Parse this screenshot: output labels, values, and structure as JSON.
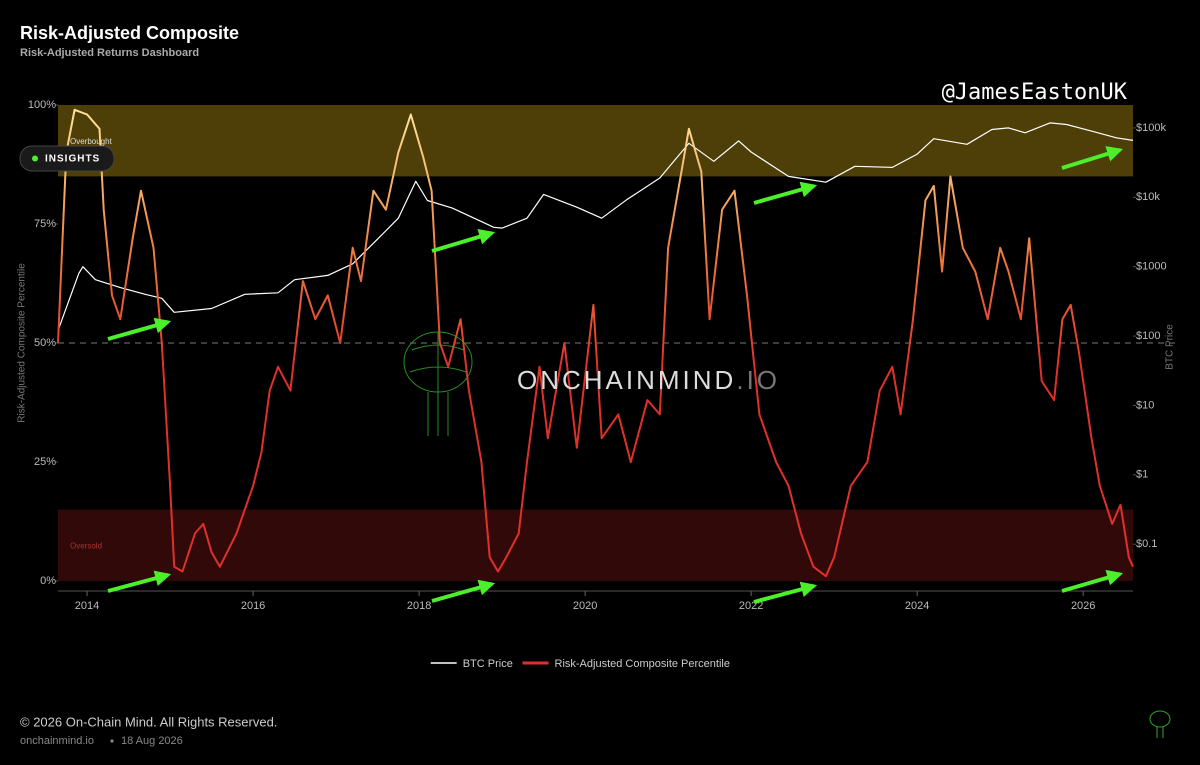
{
  "chart_data": {
    "type": "line",
    "title": "Risk-Adjusted Composite",
    "subtitle": "Risk-Adjusted Returns Dashboard",
    "handle": "@JamesEastonUK",
    "button": "INSIGHTS",
    "watermark": {
      "main": "ONCHAINMIND",
      "suffix": ".IO"
    },
    "ylabel": "Risk-Adjusted Composite Percentile",
    "y2label": "BTC Price",
    "xlim": [
      2013.65,
      2026.6
    ],
    "xticks": [
      2014,
      2016,
      2018,
      2020,
      2022,
      2024,
      2026
    ],
    "ylim": [
      0,
      100
    ],
    "yticks": [
      {
        "value": 0,
        "label": "0%"
      },
      {
        "value": 25,
        "label": "25%"
      },
      {
        "value": 50,
        "label": "50%"
      },
      {
        "value": 75,
        "label": "75%"
      },
      {
        "value": 100,
        "label": "100%"
      }
    ],
    "y2scale": "log",
    "y2lim": [
      0.0295,
      214000
    ],
    "y2ticks": [
      {
        "value": 0.1,
        "label": "$0.1"
      },
      {
        "value": 1,
        "label": "$1"
      },
      {
        "value": 10,
        "label": "$10"
      },
      {
        "value": 100,
        "label": "$100"
      },
      {
        "value": 1000,
        "label": "$1000"
      },
      {
        "value": 10000,
        "label": "$10k"
      },
      {
        "value": 100000,
        "label": "$100k"
      }
    ],
    "reference_line": 50,
    "bands": [
      {
        "label": "Overbought",
        "range": [
          85,
          100
        ],
        "color": "#5a4a08"
      },
      {
        "label": "Oversold",
        "range": [
          0,
          15
        ],
        "color": "#3a0a0a"
      }
    ],
    "legend": "bottom",
    "series": [
      {
        "name": "BTC Price",
        "color": "#ffffff",
        "axis": "y2",
        "x": [
          2013.65,
          2013.9,
          2013.95,
          2014.1,
          2014.4,
          2014.7,
          2014.9,
          2015.05,
          2015.5,
          2015.9,
          2016.3,
          2016.5,
          2016.9,
          2017.2,
          2017.5,
          2017.75,
          2017.96,
          2018.1,
          2018.4,
          2018.9,
          2019.0,
          2019.3,
          2019.5,
          2019.9,
          2020.2,
          2020.5,
          2020.9,
          2021.25,
          2021.55,
          2021.85,
          2022.0,
          2022.45,
          2022.9,
          2023.25,
          2023.7,
          2024.0,
          2024.2,
          2024.6,
          2024.9,
          2025.1,
          2025.3,
          2025.6,
          2025.8,
          2026.1,
          2026.4,
          2026.6
        ],
        "values": [
          120,
          800,
          1000,
          650,
          500,
          400,
          350,
          220,
          250,
          400,
          420,
          650,
          750,
          1100,
          2500,
          5000,
          17000,
          9000,
          7000,
          3700,
          3600,
          5000,
          11000,
          7200,
          5000,
          9200,
          19000,
          60000,
          33000,
          65000,
          45000,
          20000,
          16500,
          28000,
          27000,
          42000,
          70000,
          58000,
          95000,
          100000,
          85000,
          118000,
          112000,
          90000,
          72000,
          66000
        ]
      },
      {
        "name": "Risk-Adjusted Composite Percentile",
        "color": "#e0302a",
        "axis": "y",
        "x": [
          2013.65,
          2013.75,
          2013.85,
          2014.0,
          2014.15,
          2014.2,
          2014.3,
          2014.4,
          2014.55,
          2014.65,
          2014.8,
          2014.9,
          2015.0,
          2015.05,
          2015.15,
          2015.3,
          2015.4,
          2015.5,
          2015.6,
          2015.8,
          2016.0,
          2016.1,
          2016.2,
          2016.3,
          2016.45,
          2016.6,
          2016.75,
          2016.9,
          2017.05,
          2017.2,
          2017.3,
          2017.45,
          2017.6,
          2017.75,
          2017.9,
          2018.05,
          2018.15,
          2018.25,
          2018.35,
          2018.5,
          2018.6,
          2018.75,
          2018.85,
          2018.95,
          2019.05,
          2019.2,
          2019.3,
          2019.45,
          2019.55,
          2019.75,
          2019.9,
          2020.1,
          2020.2,
          2020.4,
          2020.55,
          2020.75,
          2020.9,
          2021.0,
          2021.15,
          2021.25,
          2021.4,
          2021.5,
          2021.65,
          2021.8,
          2021.95,
          2022.1,
          2022.3,
          2022.45,
          2022.6,
          2022.75,
          2022.9,
          2023.0,
          2023.2,
          2023.4,
          2023.55,
          2023.7,
          2023.8,
          2023.95,
          2024.1,
          2024.2,
          2024.3,
          2024.4,
          2024.55,
          2024.7,
          2024.85,
          2025.0,
          2025.1,
          2025.25,
          2025.35,
          2025.5,
          2025.65,
          2025.75,
          2025.85,
          2025.95,
          2026.1,
          2026.2,
          2026.35,
          2026.45,
          2026.55,
          2026.6
        ],
        "values": [
          50,
          90,
          99,
          98,
          95,
          78,
          60,
          55,
          72,
          82,
          70,
          50,
          20,
          3,
          2,
          10,
          12,
          6,
          3,
          10,
          20,
          27,
          40,
          45,
          40,
          63,
          55,
          60,
          50,
          70,
          63,
          82,
          78,
          90,
          98,
          89,
          82,
          50,
          45,
          55,
          40,
          25,
          5,
          2,
          5,
          10,
          25,
          45,
          30,
          50,
          28,
          58,
          30,
          35,
          25,
          38,
          35,
          70,
          85,
          95,
          86,
          55,
          78,
          82,
          60,
          35,
          25,
          20,
          10,
          3,
          1,
          5,
          20,
          25,
          40,
          45,
          35,
          55,
          80,
          83,
          65,
          85,
          70,
          65,
          55,
          70,
          65,
          55,
          72,
          42,
          38,
          55,
          58,
          48,
          30,
          20,
          12,
          16,
          5,
          3
        ]
      }
    ],
    "footer": {
      "copyright": "© 2026 On-Chain Mind. All Rights Reserved.",
      "site": "onchainmind.io",
      "date": "18 Aug 2026"
    }
  }
}
